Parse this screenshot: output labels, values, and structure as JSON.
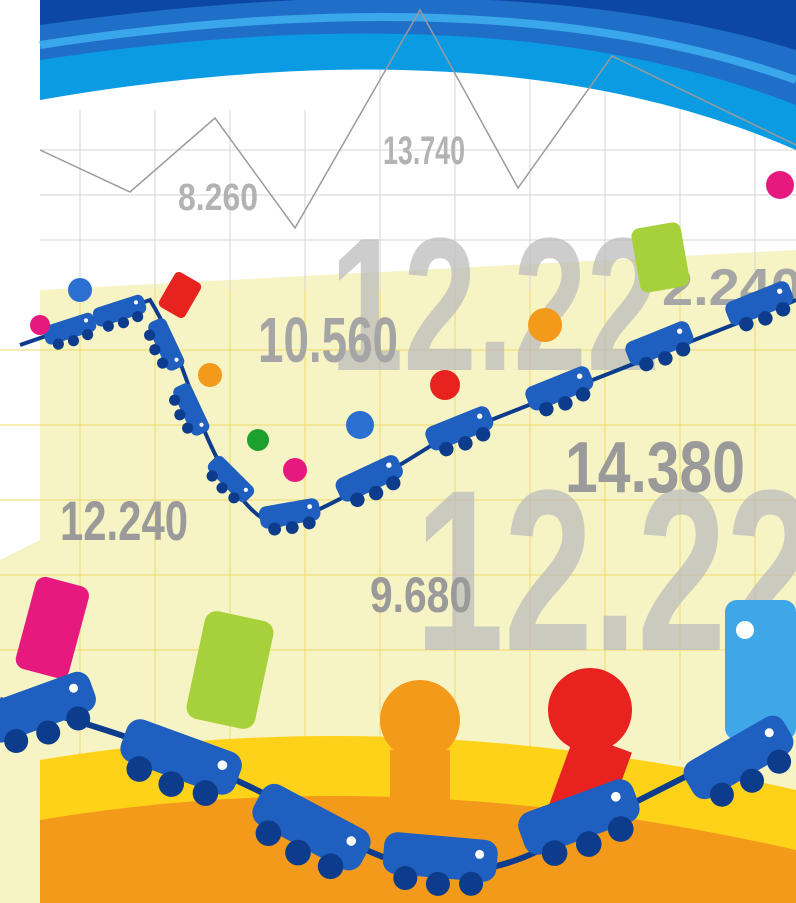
{
  "labels": {
    "big_top": "12.22",
    "big_bottom": "12.22",
    "top_peak": "13.740",
    "left_valley": "8.260",
    "mid_left": "10.560",
    "right_edge": "2.240",
    "mid_right": "14.380",
    "left_low": "12.240",
    "center_low": "9.680"
  }
}
